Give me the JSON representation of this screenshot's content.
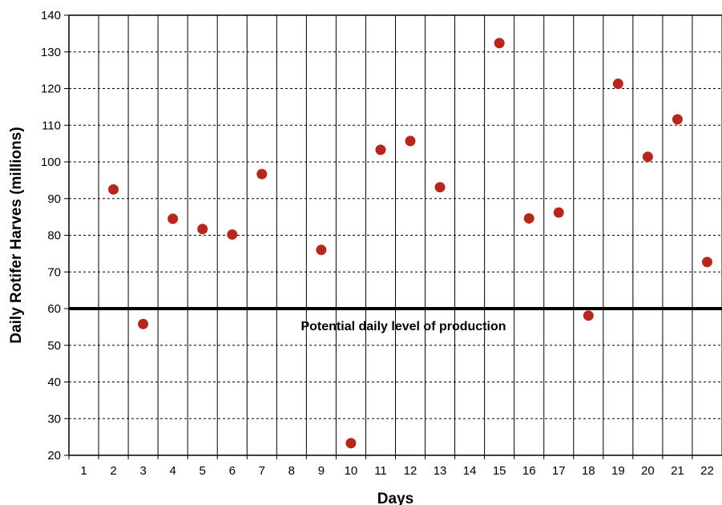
{
  "chart_data": {
    "type": "scatter",
    "title": "",
    "xlabel": "Days",
    "ylabel": "Daily Rotifer Harves (millions)",
    "ylim": [
      20,
      140
    ],
    "yticks": [
      20,
      30,
      40,
      50,
      60,
      70,
      80,
      90,
      100,
      110,
      120,
      130,
      140
    ],
    "categories": [
      "1",
      "2",
      "3",
      "4",
      "5",
      "6",
      "7",
      "8",
      "9",
      "10",
      "11",
      "12",
      "13",
      "14",
      "15",
      "16",
      "17",
      "18",
      "19",
      "20",
      "21",
      "22"
    ],
    "points": [
      {
        "x": "2",
        "y": 92.5
      },
      {
        "x": "3",
        "y": 55.8
      },
      {
        "x": "4",
        "y": 84.5
      },
      {
        "x": "5",
        "y": 81.7
      },
      {
        "x": "6",
        "y": 80.2
      },
      {
        "x": "7",
        "y": 96.7
      },
      {
        "x": "9",
        "y": 76.0
      },
      {
        "x": "10",
        "y": 23.3
      },
      {
        "x": "11",
        "y": 103.3
      },
      {
        "x": "12",
        "y": 105.7
      },
      {
        "x": "13",
        "y": 93.1
      },
      {
        "x": "15",
        "y": 132.4
      },
      {
        "x": "16",
        "y": 84.6
      },
      {
        "x": "17",
        "y": 86.2
      },
      {
        "x": "18",
        "y": 58.1
      },
      {
        "x": "19",
        "y": 121.3
      },
      {
        "x": "20",
        "y": 101.4
      },
      {
        "x": "21",
        "y": 111.6
      },
      {
        "x": "22",
        "y": 72.7
      }
    ],
    "reference_line": {
      "y": 60,
      "label": "Potential daily level of production"
    },
    "grid": {
      "vertical": "solid",
      "horizontal": "dashed"
    },
    "colors": {
      "marker": "#b5271d",
      "grid": "#000000",
      "reference": "#000000"
    }
  }
}
